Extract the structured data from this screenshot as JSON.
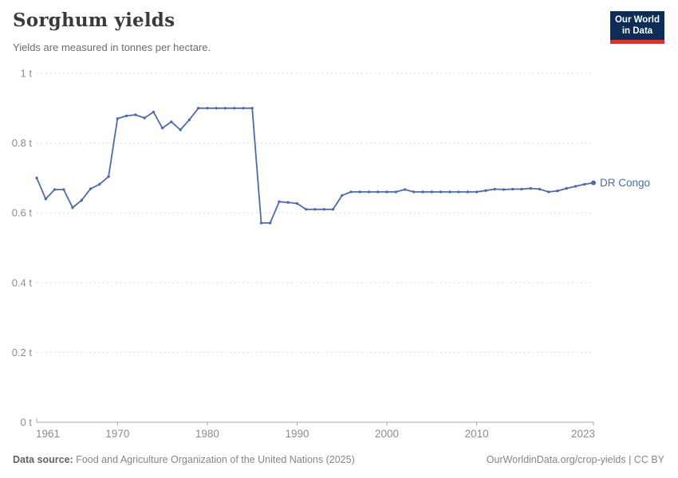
{
  "header": {
    "title": "Sorghum yields",
    "subtitle": "Yields are measured in tonnes per hectare."
  },
  "logo": {
    "line1": "Our World",
    "line2": "in Data"
  },
  "chart_data": {
    "type": "line",
    "title": "Sorghum yields",
    "ylabel": "tonnes per hectare",
    "xlabel": "",
    "xlim": [
      1961,
      2023
    ],
    "ylim": [
      0,
      1
    ],
    "grid": "horizontal-dashed",
    "legend_position": "end-of-line",
    "x_ticks": [
      1961,
      1970,
      1980,
      1990,
      2000,
      2010,
      2023
    ],
    "y_ticks": [
      {
        "value": 0,
        "label": "0 t"
      },
      {
        "value": 0.2,
        "label": "0.2 t"
      },
      {
        "value": 0.4,
        "label": "0.4 t"
      },
      {
        "value": 0.6,
        "label": "0.6 t"
      },
      {
        "value": 0.8,
        "label": "0.8 t"
      },
      {
        "value": 1,
        "label": "1 t"
      }
    ],
    "x": [
      1961,
      1962,
      1963,
      1964,
      1965,
      1966,
      1967,
      1968,
      1969,
      1970,
      1971,
      1972,
      1973,
      1974,
      1975,
      1976,
      1977,
      1978,
      1979,
      1980,
      1981,
      1982,
      1983,
      1984,
      1985,
      1986,
      1987,
      1988,
      1989,
      1990,
      1991,
      1992,
      1993,
      1994,
      1995,
      1996,
      1997,
      1998,
      1999,
      2000,
      2001,
      2002,
      2003,
      2004,
      2005,
      2006,
      2007,
      2008,
      2009,
      2010,
      2011,
      2012,
      2013,
      2014,
      2015,
      2016,
      2017,
      2018,
      2019,
      2020,
      2021,
      2022,
      2023
    ],
    "series": [
      {
        "name": "DR Congo",
        "color": "#4c6ba8",
        "values": [
          0.7,
          0.64,
          0.667,
          0.667,
          0.615,
          0.636,
          0.669,
          0.682,
          0.704,
          0.87,
          0.878,
          0.881,
          0.872,
          0.889,
          0.843,
          0.861,
          0.838,
          0.867,
          0.9,
          0.9,
          0.9,
          0.9,
          0.9,
          0.9,
          0.9,
          0.571,
          0.571,
          0.632,
          0.63,
          0.627,
          0.61,
          0.61,
          0.61,
          0.61,
          0.65,
          0.66,
          0.66,
          0.66,
          0.66,
          0.66,
          0.66,
          0.667,
          0.66,
          0.66,
          0.66,
          0.66,
          0.66,
          0.66,
          0.66,
          0.66,
          0.664,
          0.668,
          0.667,
          0.668,
          0.668,
          0.67,
          0.668,
          0.66,
          0.663,
          0.67,
          0.676,
          0.682,
          0.686
        ]
      }
    ]
  },
  "colors": {
    "line": "#4c6ba8",
    "grid": "#dcdcdc",
    "axis": "#a8a8a8",
    "tick_label": "#8c8c8c",
    "title": "#3a3a3a",
    "subtitle": "#6c6c6c",
    "footer": "#858585",
    "logo_bg": "#0d2d57",
    "logo_accent": "#cf3531"
  },
  "footer": {
    "source_label": "Data source:",
    "source_text": "Food and Agriculture Organization of the United Nations (2025)",
    "right_text": "OurWorldinData.org/crop-yields | CC BY"
  }
}
